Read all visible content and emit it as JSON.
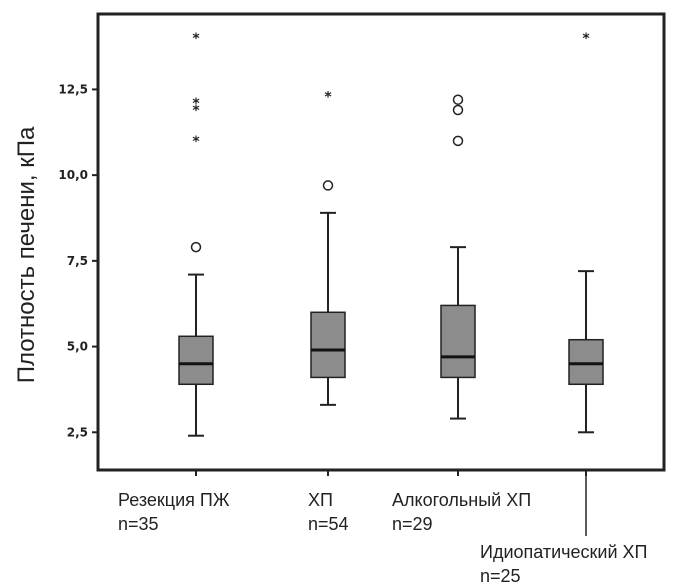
{
  "chart_data": {
    "type": "boxplot",
    "ylabel": "Плотность печени, кПа",
    "yticks": [
      "2,5",
      "5,0",
      "7,5",
      "10,0",
      "12,5"
    ],
    "ytick_values": [
      2.5,
      5.0,
      7.5,
      10.0,
      12.5
    ],
    "ylim": [
      1.4,
      14.7
    ],
    "categories": [
      {
        "name": "Резекция ПЖ",
        "n": "n=35"
      },
      {
        "name": "ХП",
        "n": "n=54"
      },
      {
        "name": "Алкогольный ХП",
        "n": "n=29"
      },
      {
        "name": "Идиопатический ХП",
        "n": "n=25"
      }
    ],
    "boxes": [
      {
        "min": 2.4,
        "q1": 3.9,
        "median": 4.5,
        "q3": 5.3,
        "max": 7.1,
        "outliers": [
          7.9
        ],
        "extremes": [
          11.0,
          11.9,
          12.1,
          14.0
        ]
      },
      {
        "min": 3.3,
        "q1": 4.1,
        "median": 4.9,
        "q3": 6.0,
        "max": 8.9,
        "outliers": [
          9.7
        ],
        "extremes": [
          12.3
        ]
      },
      {
        "min": 2.9,
        "q1": 4.1,
        "median": 4.7,
        "q3": 6.2,
        "max": 7.9,
        "outliers": [
          11.0,
          11.9,
          12.2
        ],
        "extremes": []
      },
      {
        "min": 2.5,
        "q1": 3.9,
        "median": 4.5,
        "q3": 5.2,
        "max": 7.2,
        "outliers": [],
        "extremes": [
          14.0
        ]
      }
    ],
    "box_color": "#8c8c8c",
    "grid": false,
    "legend": "none"
  }
}
